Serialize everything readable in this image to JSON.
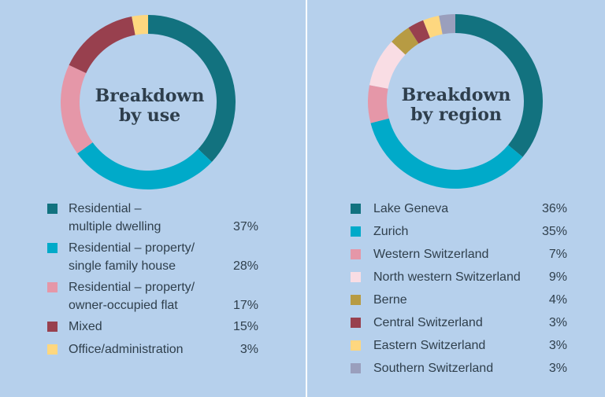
{
  "colors": {
    "background": "#b6d0ec",
    "divider": "#ffffff",
    "text": "#2f3f4c"
  },
  "chart_data": [
    {
      "type": "pie",
      "donut": true,
      "title_lines": [
        "Breakdown",
        "by use"
      ],
      "categories": [
        [
          "Residential –",
          "multiple dwelling"
        ],
        [
          "Residential – property/",
          "single family house"
        ],
        [
          "Residential – property/",
          "owner-occupied flat"
        ],
        [
          "Mixed"
        ],
        [
          "Office/administration"
        ]
      ],
      "values": [
        37,
        28,
        17,
        15,
        3
      ],
      "value_labels": [
        "37%",
        "28%",
        "17%",
        "15%",
        "3%"
      ],
      "colors": [
        "#12727f",
        "#00aac9",
        "#e597a8",
        "#98404e",
        "#fed77f"
      ]
    },
    {
      "type": "pie",
      "donut": true,
      "title_lines": [
        "Breakdown",
        "by region"
      ],
      "categories": [
        [
          "Lake Geneva"
        ],
        [
          "Zurich"
        ],
        [
          "Western Switzerland"
        ],
        [
          "North western Switzerland"
        ],
        [
          "Berne"
        ],
        [
          "Central Switzerland"
        ],
        [
          "Eastern Switzerland"
        ],
        [
          "Southern Switzerland"
        ]
      ],
      "values": [
        36,
        35,
        7,
        9,
        4,
        3,
        3,
        3
      ],
      "value_labels": [
        "36%",
        "35%",
        "7%",
        "9%",
        "4%",
        "3%",
        "3%",
        "3%"
      ],
      "colors": [
        "#12727f",
        "#00aac9",
        "#e597a8",
        "#f9dde4",
        "#b79b43",
        "#98404e",
        "#fed77f",
        "#9a9fbd"
      ]
    }
  ]
}
